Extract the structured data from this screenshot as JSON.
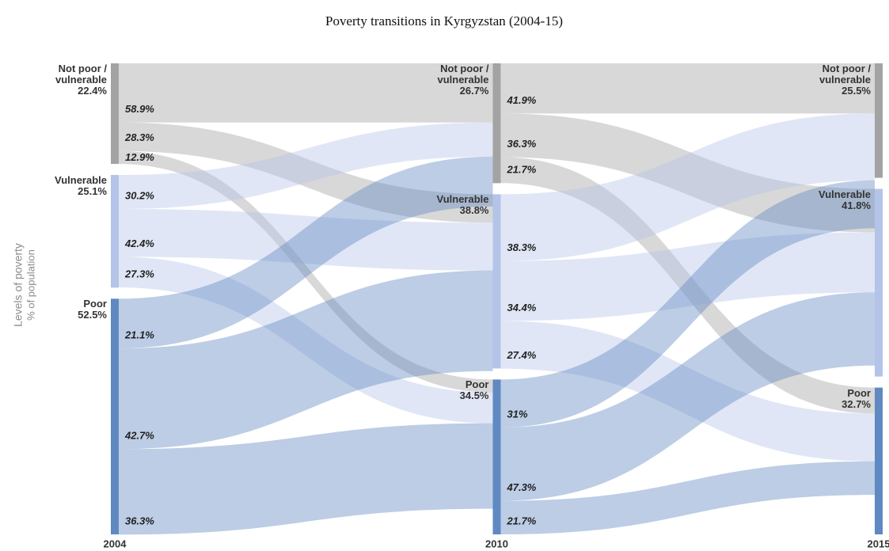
{
  "chart_data": {
    "type": "sankey",
    "title": "Poverty transitions in Kyrgyzstan (2004-15)",
    "y_label": "Levels of poverty",
    "y_sublabel": "% of population",
    "stages": [
      "2004",
      "2010",
      "2015"
    ],
    "categories": [
      "Not poor / vulnerable",
      "Vulnerable",
      "Poor"
    ],
    "colors": [
      "#a3a3a3",
      "#b4c4e8",
      "#6089c2"
    ],
    "nodes": [
      {
        "values": [
          22.4,
          25.1,
          52.5
        ],
        "value_labels": [
          "22.4%",
          "25.1%",
          "52.5%"
        ]
      },
      {
        "values": [
          26.7,
          38.8,
          34.5
        ],
        "value_labels": [
          "26.7%",
          "38.8%",
          "34.5%"
        ]
      },
      {
        "values": [
          25.5,
          41.8,
          32.7
        ],
        "value_labels": [
          "25.5%",
          "41.8%",
          "32.7%"
        ]
      }
    ],
    "flows": [
      {
        "values": [
          [
            58.9,
            28.3,
            12.9
          ],
          [
            30.2,
            42.4,
            27.3
          ],
          [
            21.1,
            42.7,
            36.3
          ]
        ],
        "value_labels": [
          [
            "58.9%",
            "28.3%",
            "12.9%"
          ],
          [
            "30.2%",
            "42.4%",
            "27.3%"
          ],
          [
            "21.1%",
            "42.7%",
            "36.3%"
          ]
        ]
      },
      {
        "values": [
          [
            41.9,
            36.3,
            21.7
          ],
          [
            38.3,
            34.4,
            27.4
          ],
          [
            31,
            47.3,
            21.7
          ]
        ],
        "value_labels": [
          [
            "41.9%",
            "36.3%",
            "21.7%"
          ],
          [
            "38.3%",
            "34.4%",
            "27.4%"
          ],
          [
            "31%",
            "47.3%",
            "21.7%"
          ]
        ]
      }
    ]
  }
}
